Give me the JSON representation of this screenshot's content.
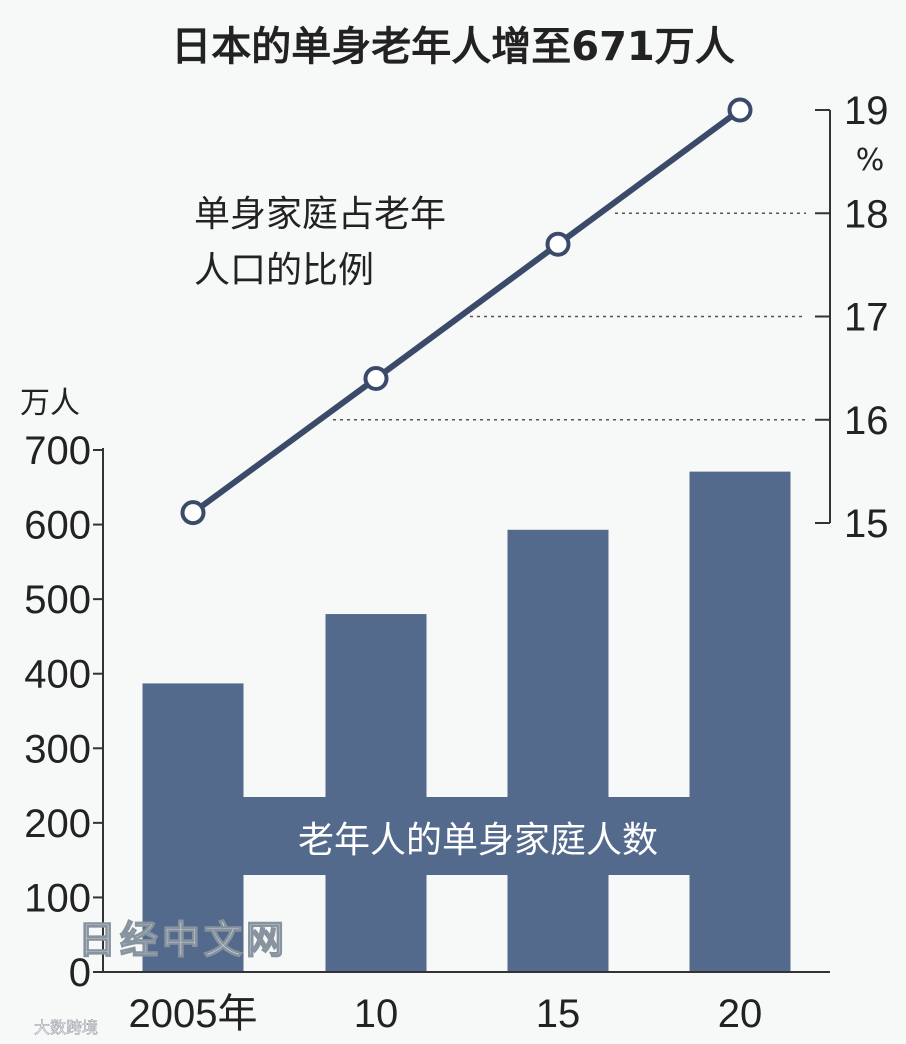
{
  "title": "日本的单身老年人增至671万人",
  "watermark": "日经中文网",
  "watermark_small": "大数跨境",
  "colors": {
    "bar": "#546a8c",
    "line": "#3c4a6a",
    "grid": "#555555",
    "axis": "#333333",
    "background": "#f7f8f8"
  },
  "chart_data": {
    "type": "bar",
    "categories": [
      "2005年",
      "10",
      "15",
      "20"
    ],
    "series": [
      {
        "name": "老年人的单身家庭人数",
        "type": "bar",
        "axis": "left",
        "values": [
          387,
          480,
          593,
          671
        ]
      },
      {
        "name": "单身家庭占老年人口的比例",
        "type": "line",
        "axis": "right",
        "values": [
          15.1,
          16.4,
          17.7,
          19.0
        ]
      }
    ],
    "y_left": {
      "unit": "万人",
      "ticks": [
        "0",
        "100",
        "200",
        "300",
        "400",
        "500",
        "600",
        "700"
      ],
      "range": [
        0,
        700
      ]
    },
    "y_right": {
      "unit": "%",
      "ticks": [
        "15",
        "16",
        "17",
        "18",
        "19"
      ],
      "range": [
        15,
        19
      ]
    },
    "line_label": [
      "单身家庭占老年",
      "人口的比例"
    ],
    "bar_label": "老年人的单身家庭人数",
    "grid": "dotted at right-axis 16, 17, 18"
  }
}
